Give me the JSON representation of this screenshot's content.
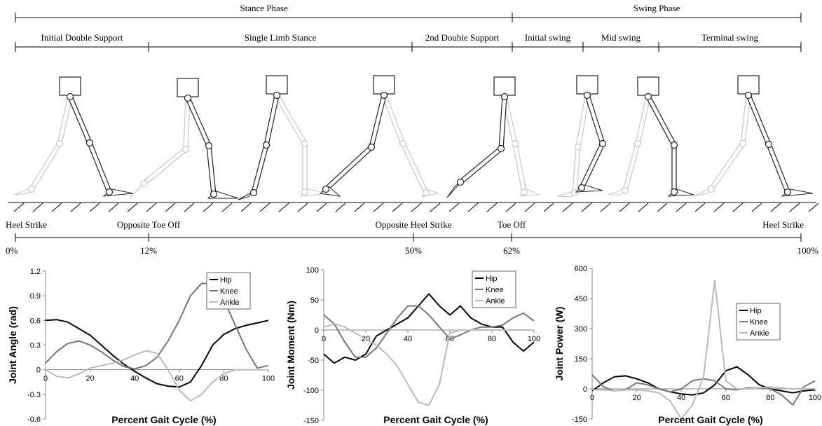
{
  "gait": {
    "phases": [
      "Stance Phase",
      "Swing Phase"
    ],
    "subphases": [
      "Initial Double Support",
      "Single Limb Stance",
      "2nd Double Support",
      "Initial swing",
      "Mid swing",
      "Terminal swing"
    ],
    "events": [
      "Heel Strike",
      "Opposite Toe Off",
      "Opposite Heel Strike",
      "Toe Off",
      "Heel Strike"
    ],
    "percents": [
      "0%",
      "12%",
      "50%",
      "62%",
      "100%"
    ]
  },
  "chart_data": [
    {
      "type": "line",
      "y_label": "Joint Angle (rad)",
      "x_label": "Percent Gait Cycle (%)",
      "x": [
        0,
        5,
        10,
        15,
        20,
        25,
        30,
        35,
        40,
        45,
        50,
        55,
        60,
        65,
        70,
        75,
        80,
        85,
        90,
        95,
        100
      ],
      "xlim": [
        0,
        100
      ],
      "xticks": [
        0,
        20,
        40,
        60,
        80,
        100
      ],
      "ylim": [
        -0.6,
        1.2
      ],
      "yticks": [
        -0.6,
        -0.3,
        0,
        0.3,
        0.6,
        0.9,
        1.2
      ],
      "series": [
        {
          "name": "Hip",
          "color": "#000000",
          "values": [
            0.6,
            0.61,
            0.58,
            0.5,
            0.42,
            0.3,
            0.18,
            0.07,
            -0.02,
            -0.1,
            -0.17,
            -0.2,
            -0.21,
            -0.15,
            0.05,
            0.3,
            0.43,
            0.5,
            0.54,
            0.57,
            0.6
          ]
        },
        {
          "name": "Knee",
          "color": "#777777",
          "values": [
            0.08,
            0.22,
            0.32,
            0.35,
            0.3,
            0.22,
            0.12,
            0.04,
            0.01,
            0.05,
            0.15,
            0.35,
            0.6,
            0.9,
            1.05,
            1.05,
            0.85,
            0.55,
            0.25,
            0.02,
            0.05
          ]
        },
        {
          "name": "Ankle",
          "color": "#bbbbbb",
          "values": [
            0,
            -0.08,
            -0.1,
            -0.05,
            0.02,
            0.05,
            0.08,
            0.12,
            0.18,
            0.23,
            0.2,
            0,
            -0.25,
            -0.38,
            -0.3,
            -0.15,
            -0.05,
            0,
            0,
            0,
            0
          ]
        }
      ]
    },
    {
      "type": "line",
      "y_label": "Joint Moment (Nm)",
      "x_label": "Percent Gait Cycle (%)",
      "x": [
        0,
        5,
        10,
        15,
        20,
        25,
        30,
        35,
        40,
        45,
        50,
        55,
        60,
        65,
        70,
        75,
        80,
        85,
        90,
        95,
        100
      ],
      "xlim": [
        0,
        100
      ],
      "xticks": [
        0,
        20,
        40,
        60,
        80,
        100
      ],
      "ylim": [
        -150,
        100
      ],
      "yticks": [
        -150,
        -100,
        -50,
        0,
        50,
        100
      ],
      "series": [
        {
          "name": "Hip",
          "color": "#000000",
          "values": [
            -40,
            -55,
            -45,
            -50,
            -40,
            -10,
            0,
            10,
            20,
            40,
            60,
            40,
            25,
            40,
            20,
            10,
            5,
            5,
            -20,
            -35,
            -20
          ]
        },
        {
          "name": "Knee",
          "color": "#777777",
          "values": [
            25,
            10,
            -20,
            -45,
            -45,
            -30,
            -5,
            20,
            40,
            40,
            25,
            5,
            -15,
            -8,
            0,
            5,
            5,
            8,
            20,
            28,
            15
          ]
        },
        {
          "name": "Ankle",
          "color": "#bbbbbb",
          "values": [
            5,
            10,
            5,
            -5,
            -15,
            -25,
            -40,
            -60,
            -90,
            -120,
            -125,
            -90,
            -5,
            0,
            0,
            0,
            0,
            0,
            0,
            0,
            0
          ]
        }
      ]
    },
    {
      "type": "line",
      "y_label": "Joint Power (W)",
      "x_label": "Percent Gait Cycle (%)",
      "x": [
        0,
        5,
        10,
        15,
        20,
        25,
        30,
        35,
        40,
        45,
        50,
        55,
        60,
        65,
        70,
        75,
        80,
        85,
        90,
        95,
        100
      ],
      "xlim": [
        0,
        100
      ],
      "xticks": [
        0,
        20,
        40,
        60,
        80,
        100
      ],
      "ylim": [
        -150,
        600
      ],
      "yticks": [
        -150,
        0,
        150,
        300,
        450,
        600
      ],
      "series": [
        {
          "name": "Hip",
          "color": "#000000",
          "values": [
            -10,
            30,
            60,
            65,
            50,
            30,
            0,
            -15,
            -25,
            -30,
            -20,
            20,
            90,
            110,
            70,
            20,
            0,
            -10,
            -20,
            -10,
            -5
          ]
        },
        {
          "name": "Knee",
          "color": "#777777",
          "values": [
            70,
            10,
            -10,
            -5,
            30,
            20,
            0,
            -15,
            0,
            40,
            50,
            40,
            0,
            -5,
            5,
            5,
            0,
            -30,
            -80,
            10,
            40
          ]
        },
        {
          "name": "Ankle",
          "color": "#bbbbbb",
          "values": [
            -5,
            -5,
            -10,
            -5,
            -5,
            -10,
            -20,
            -60,
            -150,
            -80,
            60,
            540,
            40,
            0,
            0,
            5,
            10,
            5,
            0,
            0,
            0
          ]
        }
      ]
    }
  ]
}
